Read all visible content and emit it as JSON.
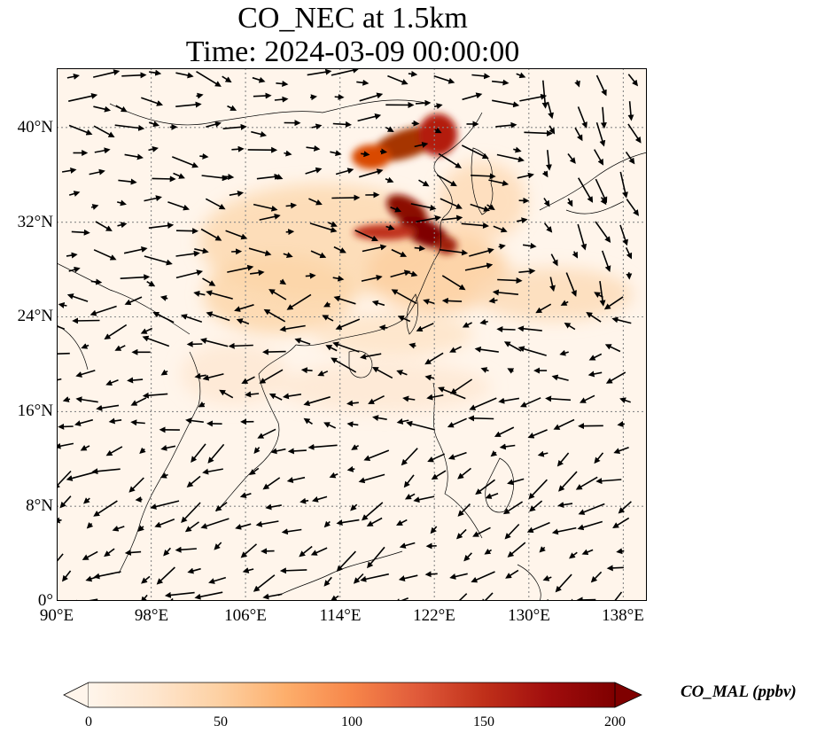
{
  "title": {
    "line1": "CO_NEC at 1.5km",
    "line2": "Time: 2024-03-09 00:00:00"
  },
  "map": {
    "lon_range": [
      90,
      140
    ],
    "lat_range": [
      0,
      45
    ],
    "lat_ticks": [
      "0°",
      "8°N",
      "16°N",
      "24°N",
      "32°N",
      "40°N"
    ],
    "lon_ticks": [
      "90°E",
      "98°E",
      "106°E",
      "114°E",
      "122°E",
      "130°E",
      "138°E"
    ],
    "gridlines": true
  },
  "colorbar": {
    "label": "CO_MAL (ppbv)",
    "ticks": [
      "0",
      "50",
      "100",
      "150",
      "200"
    ],
    "range": [
      0,
      200
    ],
    "extend": "both",
    "colors": [
      "#fff5eb",
      "#fee6ce",
      "#fdd0a2",
      "#fdae6b",
      "#fd8d3c",
      "#f16913",
      "#d94801",
      "#a63603",
      "#7f2704"
    ]
  }
}
